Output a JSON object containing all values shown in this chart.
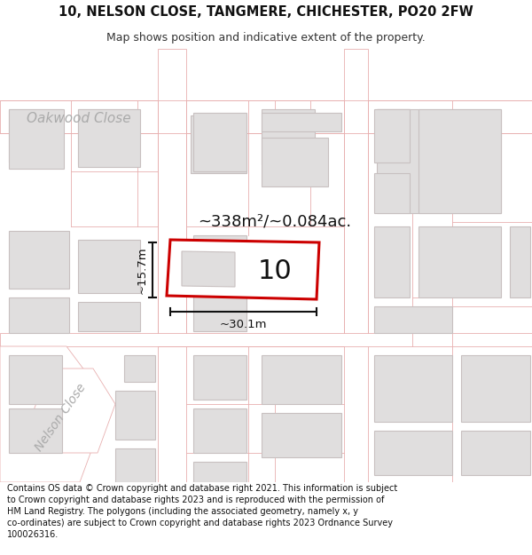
{
  "title_line1": "10, NELSON CLOSE, TANGMERE, CHICHESTER, PO20 2FW",
  "title_line2": "Map shows position and indicative extent of the property.",
  "area_text": "~338m²/~0.084ac.",
  "label_number": "10",
  "dim_width": "~30.1m",
  "dim_height": "~15.7m",
  "street_oakwood": "Oakwood Close",
  "street_nelson": "Nelson Close",
  "footer_text": "Contains OS data © Crown copyright and database right 2021. This information is subject to Crown copyright and database rights 2023 and is reproduced with the permission of HM Land Registry. The polygons (including the associated geometry, namely x, y co-ordinates) are subject to Crown copyright and database rights 2023 Ordnance Survey 100026316.",
  "map_bg": "#f7f5f5",
  "road_fill": "#ffffff",
  "parcel_stroke": "#e8b0b0",
  "building_fill": "#e0dede",
  "building_stroke": "#c8c0c0",
  "prop_fill": "#ffffff",
  "prop_stroke": "#cc0000",
  "dim_color": "#111111",
  "street_color": "#aaaaaa",
  "title_bg": "#ffffff",
  "footer_bg": "#ffffff",
  "title_fs": 10.5,
  "subtitle_fs": 9,
  "area_fs": 13,
  "number_fs": 22,
  "dim_fs": 9.5,
  "street_fs_oak": 11,
  "street_fs_nel": 10,
  "footer_fs": 7.0
}
